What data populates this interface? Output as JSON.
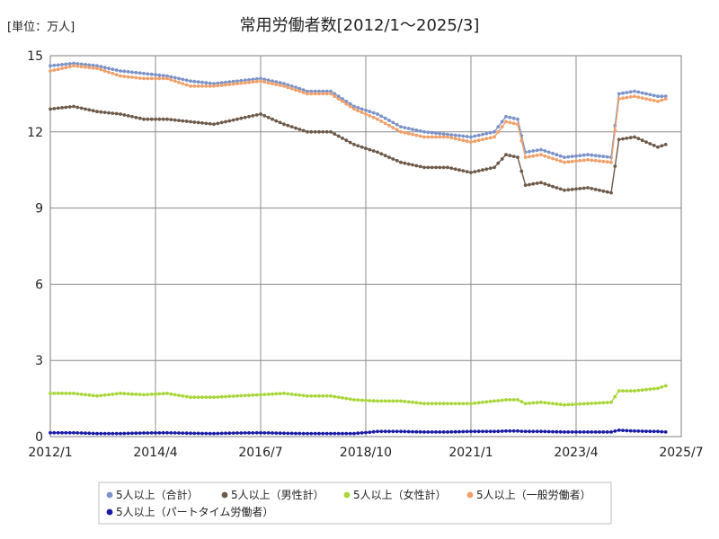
{
  "chart_data": {
    "type": "line",
    "title": "常用労働者数[2012/1～2025/3]",
    "unit_label": "[単位：万人]",
    "xlabel": "",
    "ylabel": "",
    "xlim": [
      "2012/1",
      "2025/7"
    ],
    "ylim": [
      0,
      15
    ],
    "grid": true,
    "legend_position": "bottom",
    "y_ticks": [
      {
        "value": 0,
        "label": "0"
      },
      {
        "value": 3,
        "label": "3"
      },
      {
        "value": 6,
        "label": "6"
      },
      {
        "value": 9,
        "label": "9"
      },
      {
        "value": 12,
        "label": "12"
      },
      {
        "value": 15,
        "label": "15"
      }
    ],
    "x_ticks": [
      {
        "month": "2012/1",
        "label": "2012/1"
      },
      {
        "month": "2014/4",
        "label": "2014/4"
      },
      {
        "month": "2016/7",
        "label": "2016/7"
      },
      {
        "month": "2018/10",
        "label": "2018/10"
      },
      {
        "month": "2021/1",
        "label": "2021/1"
      },
      {
        "month": "2023/4",
        "label": "2023/4"
      },
      {
        "month": "2025/7",
        "label": "2025/7"
      }
    ],
    "series": [
      {
        "name": "5人以上（合計）",
        "color": "#7b93c9",
        "points": [
          [
            "2012/1",
            14.6
          ],
          [
            "2012/7",
            14.7
          ],
          [
            "2013/1",
            14.6
          ],
          [
            "2013/7",
            14.4
          ],
          [
            "2014/1",
            14.3
          ],
          [
            "2014/7",
            14.2
          ],
          [
            "2015/1",
            14.0
          ],
          [
            "2015/7",
            13.9
          ],
          [
            "2016/1",
            14.0
          ],
          [
            "2016/7",
            14.1
          ],
          [
            "2017/1",
            13.9
          ],
          [
            "2017/7",
            13.6
          ],
          [
            "2018/1",
            13.6
          ],
          [
            "2018/7",
            13.0
          ],
          [
            "2019/1",
            12.7
          ],
          [
            "2019/7",
            12.2
          ],
          [
            "2020/1",
            12.0
          ],
          [
            "2020/7",
            11.9
          ],
          [
            "2021/1",
            11.8
          ],
          [
            "2021/7",
            12.0
          ],
          [
            "2021/10",
            12.6
          ],
          [
            "2022/1",
            12.5
          ],
          [
            "2022/3",
            11.2
          ],
          [
            "2022/7",
            11.3
          ],
          [
            "2023/1",
            11.0
          ],
          [
            "2023/7",
            11.1
          ],
          [
            "2024/1",
            11.0
          ],
          [
            "2024/3",
            13.5
          ],
          [
            "2024/7",
            13.6
          ],
          [
            "2025/1",
            13.4
          ],
          [
            "2025/3",
            13.4
          ]
        ]
      },
      {
        "name": "5人以上（男性計）",
        "color": "#6e5a4a",
        "points": [
          [
            "2012/1",
            12.9
          ],
          [
            "2012/7",
            13.0
          ],
          [
            "2013/1",
            12.8
          ],
          [
            "2013/7",
            12.7
          ],
          [
            "2014/1",
            12.5
          ],
          [
            "2014/7",
            12.5
          ],
          [
            "2015/1",
            12.4
          ],
          [
            "2015/7",
            12.3
          ],
          [
            "2016/1",
            12.5
          ],
          [
            "2016/7",
            12.7
          ],
          [
            "2017/1",
            12.3
          ],
          [
            "2017/7",
            12.0
          ],
          [
            "2018/1",
            12.0
          ],
          [
            "2018/7",
            11.5
          ],
          [
            "2019/1",
            11.2
          ],
          [
            "2019/7",
            10.8
          ],
          [
            "2020/1",
            10.6
          ],
          [
            "2020/7",
            10.6
          ],
          [
            "2021/1",
            10.4
          ],
          [
            "2021/7",
            10.6
          ],
          [
            "2021/10",
            11.1
          ],
          [
            "2022/1",
            11.0
          ],
          [
            "2022/3",
            9.9
          ],
          [
            "2022/7",
            10.0
          ],
          [
            "2023/1",
            9.7
          ],
          [
            "2023/7",
            9.8
          ],
          [
            "2024/1",
            9.6
          ],
          [
            "2024/3",
            11.7
          ],
          [
            "2024/7",
            11.8
          ],
          [
            "2025/1",
            11.4
          ],
          [
            "2025/3",
            11.5
          ]
        ]
      },
      {
        "name": "5人以上（女性計）",
        "color": "#a8d63a",
        "points": [
          [
            "2012/1",
            1.7
          ],
          [
            "2012/7",
            1.7
          ],
          [
            "2013/1",
            1.6
          ],
          [
            "2013/7",
            1.7
          ],
          [
            "2014/1",
            1.65
          ],
          [
            "2014/7",
            1.7
          ],
          [
            "2015/1",
            1.55
          ],
          [
            "2015/7",
            1.55
          ],
          [
            "2016/1",
            1.6
          ],
          [
            "2016/7",
            1.65
          ],
          [
            "2017/1",
            1.7
          ],
          [
            "2017/7",
            1.6
          ],
          [
            "2018/1",
            1.6
          ],
          [
            "2018/7",
            1.45
          ],
          [
            "2019/1",
            1.4
          ],
          [
            "2019/7",
            1.4
          ],
          [
            "2020/1",
            1.3
          ],
          [
            "2020/7",
            1.3
          ],
          [
            "2021/1",
            1.3
          ],
          [
            "2021/7",
            1.4
          ],
          [
            "2021/10",
            1.45
          ],
          [
            "2022/1",
            1.45
          ],
          [
            "2022/3",
            1.3
          ],
          [
            "2022/7",
            1.35
          ],
          [
            "2023/1",
            1.25
          ],
          [
            "2023/7",
            1.3
          ],
          [
            "2024/1",
            1.35
          ],
          [
            "2024/3",
            1.8
          ],
          [
            "2024/7",
            1.8
          ],
          [
            "2025/1",
            1.9
          ],
          [
            "2025/3",
            2.0
          ]
        ]
      },
      {
        "name": "5人以上（一般労働者）",
        "color": "#f0a06a",
        "points": [
          [
            "2012/1",
            14.4
          ],
          [
            "2012/7",
            14.6
          ],
          [
            "2013/1",
            14.5
          ],
          [
            "2013/7",
            14.2
          ],
          [
            "2014/1",
            14.1
          ],
          [
            "2014/7",
            14.1
          ],
          [
            "2015/1",
            13.8
          ],
          [
            "2015/7",
            13.8
          ],
          [
            "2016/1",
            13.9
          ],
          [
            "2016/7",
            14.0
          ],
          [
            "2017/1",
            13.8
          ],
          [
            "2017/7",
            13.5
          ],
          [
            "2018/1",
            13.5
          ],
          [
            "2018/7",
            12.9
          ],
          [
            "2019/1",
            12.5
          ],
          [
            "2019/7",
            12.0
          ],
          [
            "2020/1",
            11.8
          ],
          [
            "2020/7",
            11.8
          ],
          [
            "2021/1",
            11.6
          ],
          [
            "2021/7",
            11.8
          ],
          [
            "2021/10",
            12.4
          ],
          [
            "2022/1",
            12.3
          ],
          [
            "2022/3",
            11.0
          ],
          [
            "2022/7",
            11.1
          ],
          [
            "2023/1",
            10.8
          ],
          [
            "2023/7",
            10.9
          ],
          [
            "2024/1",
            10.8
          ],
          [
            "2024/3",
            13.3
          ],
          [
            "2024/7",
            13.4
          ],
          [
            "2025/1",
            13.2
          ],
          [
            "2025/3",
            13.3
          ]
        ]
      },
      {
        "name": "5人以上（パートタイム労働者）",
        "color": "#1a1aa6",
        "points": [
          [
            "2012/1",
            0.15
          ],
          [
            "2012/7",
            0.15
          ],
          [
            "2013/1",
            0.12
          ],
          [
            "2013/7",
            0.12
          ],
          [
            "2014/1",
            0.14
          ],
          [
            "2014/7",
            0.15
          ],
          [
            "2015/1",
            0.13
          ],
          [
            "2015/7",
            0.12
          ],
          [
            "2016/1",
            0.14
          ],
          [
            "2016/7",
            0.15
          ],
          [
            "2017/1",
            0.13
          ],
          [
            "2017/7",
            0.12
          ],
          [
            "2018/1",
            0.12
          ],
          [
            "2018/7",
            0.12
          ],
          [
            "2019/1",
            0.2
          ],
          [
            "2019/7",
            0.2
          ],
          [
            "2020/1",
            0.18
          ],
          [
            "2020/7",
            0.18
          ],
          [
            "2021/1",
            0.2
          ],
          [
            "2021/7",
            0.2
          ],
          [
            "2021/10",
            0.22
          ],
          [
            "2022/1",
            0.22
          ],
          [
            "2022/3",
            0.2
          ],
          [
            "2022/7",
            0.2
          ],
          [
            "2023/1",
            0.18
          ],
          [
            "2023/7",
            0.18
          ],
          [
            "2024/1",
            0.18
          ],
          [
            "2024/3",
            0.25
          ],
          [
            "2024/7",
            0.22
          ],
          [
            "2025/1",
            0.2
          ],
          [
            "2025/3",
            0.18
          ]
        ]
      }
    ]
  }
}
